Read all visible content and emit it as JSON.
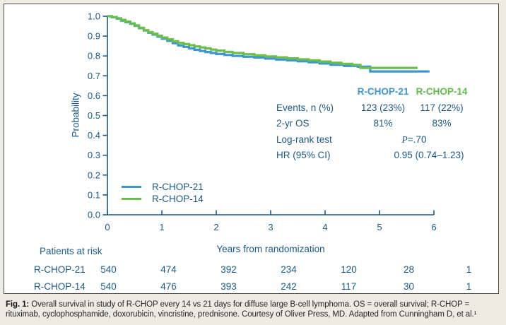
{
  "colors": {
    "rchop21_blue": "#3d96d2",
    "rchop14_green": "#69bf4a",
    "axis_navy": "#1a5a8c"
  },
  "chart_data": {
    "type": "line",
    "subtype": "kaplan-meier-step-curves",
    "title": "",
    "xlabel": "Years from randomization",
    "ylabel": "Probability",
    "xlim": [
      0,
      6
    ],
    "ylim": [
      0.0,
      1.0
    ],
    "x_ticks": [
      0,
      1,
      2,
      3,
      4,
      5,
      6
    ],
    "y_ticks": [
      0.0,
      0.1,
      0.2,
      0.3,
      0.4,
      0.5,
      0.6,
      0.7,
      0.8,
      0.9,
      1.0
    ],
    "grid": false,
    "legend_position": "lower-left",
    "series": [
      {
        "name": "R-CHOP-21",
        "color": "#3d96d2",
        "points": [
          [
            0,
            1.0
          ],
          [
            0.08,
            0.995
          ],
          [
            0.17,
            0.988
          ],
          [
            0.25,
            0.978
          ],
          [
            0.33,
            0.97
          ],
          [
            0.42,
            0.962
          ],
          [
            0.5,
            0.952
          ],
          [
            0.58,
            0.94
          ],
          [
            0.67,
            0.928
          ],
          [
            0.75,
            0.917
          ],
          [
            0.83,
            0.908
          ],
          [
            0.92,
            0.897
          ],
          [
            1.0,
            0.887
          ],
          [
            1.1,
            0.876
          ],
          [
            1.2,
            0.864
          ],
          [
            1.3,
            0.853
          ],
          [
            1.4,
            0.846
          ],
          [
            1.5,
            0.838
          ],
          [
            1.6,
            0.831
          ],
          [
            1.7,
            0.825
          ],
          [
            1.8,
            0.82
          ],
          [
            1.9,
            0.815
          ],
          [
            2.0,
            0.81
          ],
          [
            2.15,
            0.805
          ],
          [
            2.3,
            0.8
          ],
          [
            2.5,
            0.796
          ],
          [
            2.7,
            0.792
          ],
          [
            2.9,
            0.787
          ],
          [
            3.1,
            0.782
          ],
          [
            3.3,
            0.778
          ],
          [
            3.5,
            0.773
          ],
          [
            3.7,
            0.768
          ],
          [
            3.9,
            0.762
          ],
          [
            4.1,
            0.756
          ],
          [
            4.35,
            0.75
          ],
          [
            4.6,
            0.746
          ],
          [
            4.83,
            0.722
          ],
          [
            5.92,
            0.722
          ]
        ]
      },
      {
        "name": "R-CHOP-14",
        "color": "#69bf4a",
        "points": [
          [
            0,
            1.0
          ],
          [
            0.08,
            0.996
          ],
          [
            0.17,
            0.99
          ],
          [
            0.25,
            0.982
          ],
          [
            0.33,
            0.973
          ],
          [
            0.42,
            0.964
          ],
          [
            0.5,
            0.954
          ],
          [
            0.58,
            0.942
          ],
          [
            0.67,
            0.93
          ],
          [
            0.75,
            0.92
          ],
          [
            0.83,
            0.912
          ],
          [
            0.92,
            0.902
          ],
          [
            1.0,
            0.893
          ],
          [
            1.1,
            0.884
          ],
          [
            1.2,
            0.874
          ],
          [
            1.3,
            0.866
          ],
          [
            1.4,
            0.86
          ],
          [
            1.5,
            0.854
          ],
          [
            1.6,
            0.848
          ],
          [
            1.7,
            0.843
          ],
          [
            1.8,
            0.838
          ],
          [
            1.9,
            0.832
          ],
          [
            2.0,
            0.827
          ],
          [
            2.15,
            0.821
          ],
          [
            2.3,
            0.815
          ],
          [
            2.5,
            0.809
          ],
          [
            2.7,
            0.803
          ],
          [
            2.9,
            0.798
          ],
          [
            3.1,
            0.793
          ],
          [
            3.3,
            0.788
          ],
          [
            3.5,
            0.783
          ],
          [
            3.7,
            0.778
          ],
          [
            3.9,
            0.772
          ],
          [
            4.1,
            0.766
          ],
          [
            4.3,
            0.76
          ],
          [
            4.5,
            0.755
          ],
          [
            4.65,
            0.74
          ],
          [
            5.7,
            0.74
          ]
        ]
      }
    ]
  },
  "legend": {
    "items": [
      {
        "label": "R-CHOP-21",
        "color": "#3d96d2"
      },
      {
        "label": "R-CHOP-14",
        "color": "#69bf4a"
      }
    ]
  },
  "stats_table": {
    "col1_header": "R-CHOP-21",
    "col2_header": "R-CHOP-14",
    "rows": [
      {
        "label": "Events, n (%)",
        "col1": "123 (23%)",
        "col2": "117 (22%)"
      },
      {
        "label": "2-yr OS",
        "col1": "81%",
        "col2": "83%"
      },
      {
        "label": "Log-rank test",
        "merged_italic": "P",
        "merged": "=.70"
      },
      {
        "label": "HR (95% CI)",
        "merged": "0.95 (0.74–1.23)"
      }
    ]
  },
  "risk_table": {
    "title": "Patients at risk",
    "rows": [
      {
        "name": "R-CHOP-21",
        "counts": [
          "540",
          "474",
          "392",
          "234",
          "120",
          "28",
          "1"
        ]
      },
      {
        "name": "R-CHOP-14",
        "counts": [
          "540",
          "476",
          "393",
          "242",
          "117",
          "30",
          "1"
        ]
      }
    ]
  },
  "caption": {
    "prefix": "Fig. 1:",
    "text": "Overall survival in study of R-CHOP every 14 vs 21 days for diffuse large B-cell lymphoma. OS = overall survival; R-CHOP = rituximab, cyclophosphamide, doxorubicin, vincristine, prednisone. Courtesy of Oliver Press, MD. Adapted from Cunningham D, et al.¹"
  }
}
